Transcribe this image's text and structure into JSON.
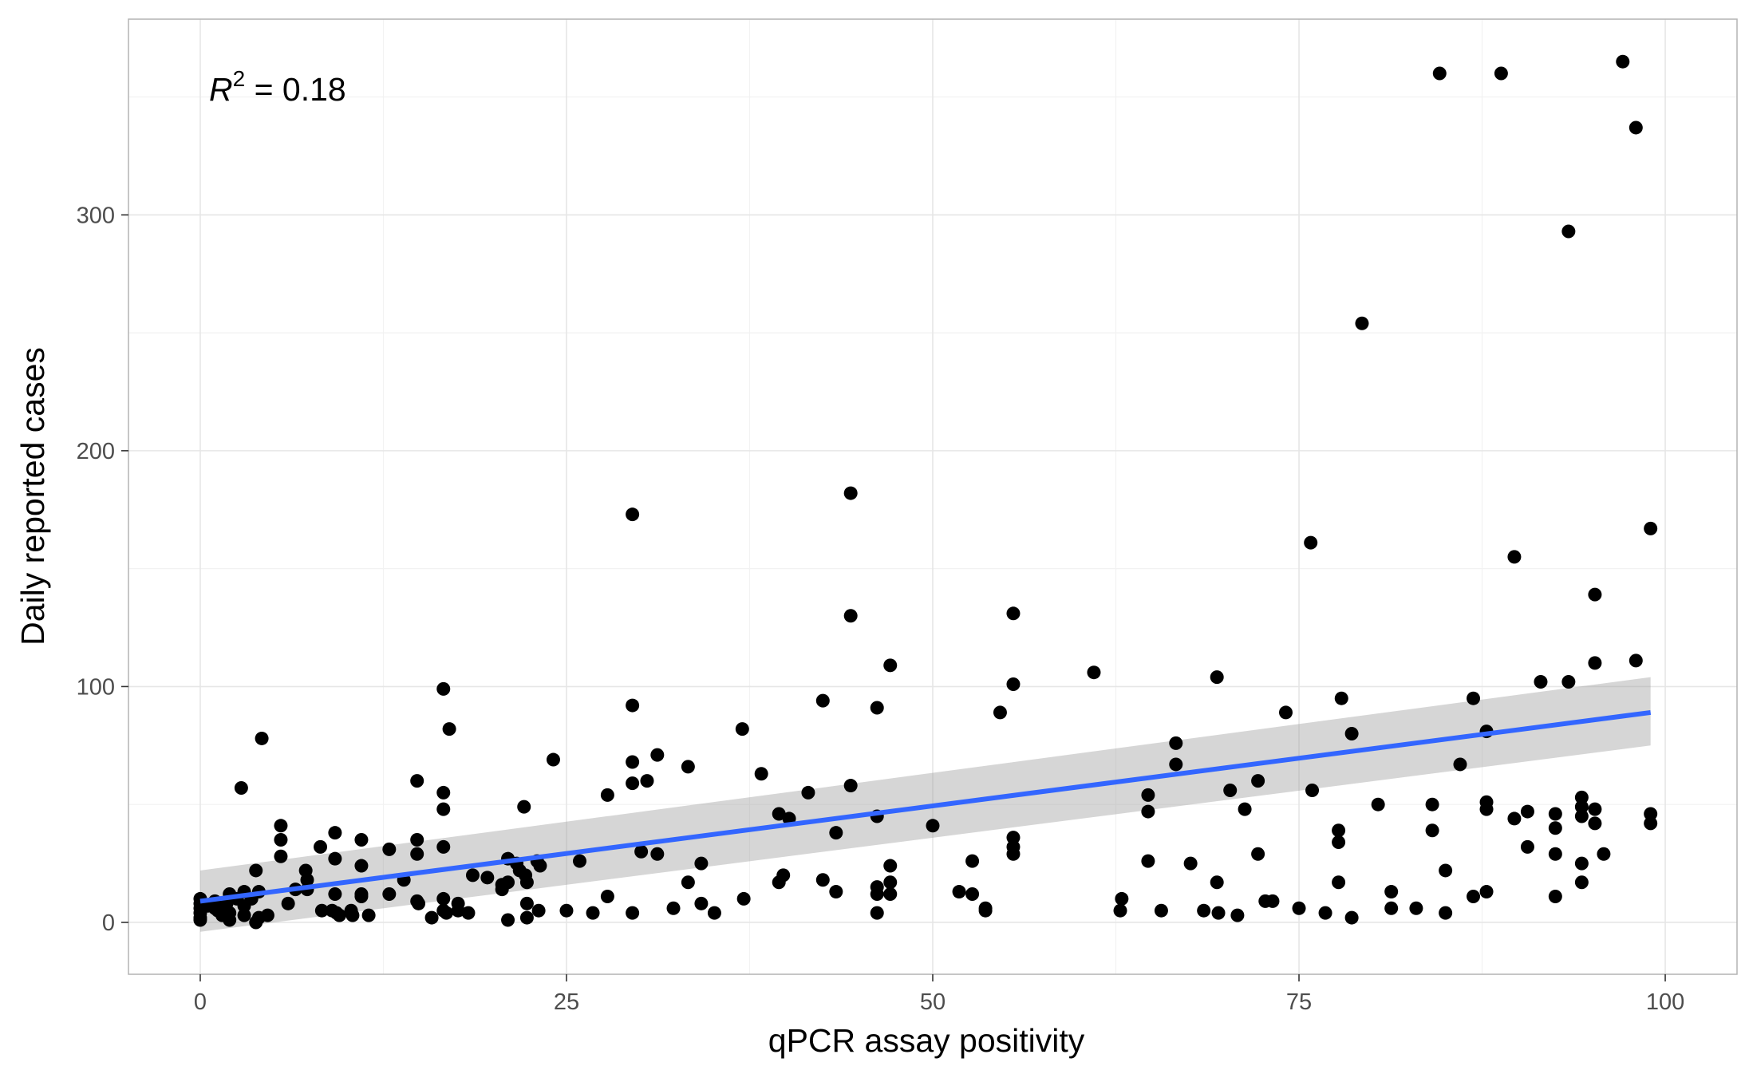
{
  "chart_data": {
    "type": "scatter",
    "xlabel": "qPCR assay positivity",
    "ylabel": "Daily reported cases",
    "xlim": [
      -4.9,
      104.9
    ],
    "ylim": [
      -22,
      383
    ],
    "x_ticks": [
      0,
      25,
      50,
      75,
      100
    ],
    "x_tick_labels": [
      "0",
      "25",
      "50",
      "75",
      "100"
    ],
    "y_ticks": [
      0,
      100,
      200,
      300
    ],
    "y_tick_labels": [
      "0",
      "100",
      "200",
      "300"
    ],
    "grid": true,
    "annotation": {
      "base": "R",
      "sup": "2",
      "rest": " = 0.18"
    },
    "colors": {
      "points": "#000000",
      "fit_line": "#3366FF",
      "confidence_band": "#d3d3d3",
      "grid": "#ebebeb",
      "panel_border": "#b3b3b3"
    },
    "fit": {
      "x": [
        0,
        99
      ],
      "y": [
        9,
        89
      ],
      "ci_lower": [
        -4,
        75
      ],
      "ci_upper": [
        22,
        104
      ]
    },
    "points": [
      [
        0,
        10
      ],
      [
        0,
        8
      ],
      [
        0,
        6
      ],
      [
        0,
        4
      ],
      [
        0,
        2
      ],
      [
        0,
        1
      ],
      [
        0.5,
        7
      ],
      [
        1,
        9
      ],
      [
        1,
        6
      ],
      [
        1.2,
        5
      ],
      [
        1.5,
        3
      ],
      [
        1.8,
        8
      ],
      [
        2,
        12
      ],
      [
        2,
        4
      ],
      [
        2,
        1
      ],
      [
        2.5,
        10
      ],
      [
        2.8,
        57
      ],
      [
        3,
        13
      ],
      [
        3,
        7
      ],
      [
        3,
        3
      ],
      [
        3.5,
        10
      ],
      [
        3.8,
        22
      ],
      [
        3.8,
        0
      ],
      [
        4,
        13
      ],
      [
        4,
        2
      ],
      [
        4.2,
        78
      ],
      [
        4.6,
        3
      ],
      [
        5.5,
        41
      ],
      [
        5.5,
        35
      ],
      [
        5.5,
        28
      ],
      [
        6,
        8
      ],
      [
        6.5,
        14
      ],
      [
        7.2,
        22
      ],
      [
        7.3,
        18
      ],
      [
        7.3,
        14
      ],
      [
        8.2,
        32
      ],
      [
        8.3,
        5
      ],
      [
        9,
        5
      ],
      [
        9.2,
        38
      ],
      [
        9.2,
        27
      ],
      [
        9.2,
        12
      ],
      [
        9.3,
        4
      ],
      [
        9.5,
        3
      ],
      [
        10.3,
        5
      ],
      [
        10.4,
        3
      ],
      [
        11,
        35
      ],
      [
        11,
        24
      ],
      [
        11,
        12
      ],
      [
        11,
        11
      ],
      [
        11.5,
        3
      ],
      [
        12.9,
        31
      ],
      [
        12.9,
        12
      ],
      [
        13.9,
        18
      ],
      [
        14.8,
        35
      ],
      [
        14.8,
        60
      ],
      [
        14.8,
        29
      ],
      [
        14.8,
        9
      ],
      [
        14.9,
        8
      ],
      [
        15.8,
        2
      ],
      [
        16.6,
        99
      ],
      [
        16.6,
        55
      ],
      [
        16.6,
        48
      ],
      [
        16.6,
        32
      ],
      [
        16.6,
        10
      ],
      [
        16.6,
        5
      ],
      [
        16.8,
        4
      ],
      [
        17,
        82
      ],
      [
        17.6,
        8
      ],
      [
        17.6,
        5
      ],
      [
        18.3,
        4
      ],
      [
        18.6,
        20
      ],
      [
        19.6,
        19
      ],
      [
        20.6,
        14
      ],
      [
        20.6,
        16
      ],
      [
        21,
        1
      ],
      [
        21,
        27
      ],
      [
        21,
        17
      ],
      [
        21.6,
        25
      ],
      [
        21.8,
        22
      ],
      [
        22.1,
        49
      ],
      [
        22.2,
        20
      ],
      [
        22.3,
        17
      ],
      [
        22.3,
        8
      ],
      [
        22.3,
        2
      ],
      [
        23,
        26
      ],
      [
        23.1,
        5
      ],
      [
        23.2,
        24
      ],
      [
        24.1,
        69
      ],
      [
        25,
        5
      ],
      [
        25.9,
        26
      ],
      [
        26.8,
        4
      ],
      [
        27.8,
        54
      ],
      [
        27.8,
        11
      ],
      [
        29.5,
        173
      ],
      [
        29.5,
        92
      ],
      [
        29.5,
        68
      ],
      [
        29.5,
        59
      ],
      [
        29.5,
        4
      ],
      [
        30.1,
        30
      ],
      [
        30.5,
        60
      ],
      [
        31.2,
        71
      ],
      [
        31.2,
        29
      ],
      [
        32.3,
        6
      ],
      [
        33.3,
        66
      ],
      [
        33.3,
        17
      ],
      [
        34.2,
        25
      ],
      [
        34.2,
        8
      ],
      [
        35.1,
        4
      ],
      [
        37,
        82
      ],
      [
        37.1,
        10
      ],
      [
        38.3,
        63
      ],
      [
        39.5,
        46
      ],
      [
        39.5,
        17
      ],
      [
        39.8,
        20
      ],
      [
        40.2,
        44
      ],
      [
        41.5,
        55
      ],
      [
        42.5,
        94
      ],
      [
        42.5,
        18
      ],
      [
        43.4,
        38
      ],
      [
        43.4,
        13
      ],
      [
        44.4,
        182
      ],
      [
        44.4,
        130
      ],
      [
        44.4,
        58
      ],
      [
        46.2,
        91
      ],
      [
        46.2,
        45
      ],
      [
        46.2,
        15
      ],
      [
        46.2,
        12
      ],
      [
        46.2,
        4
      ],
      [
        47.1,
        109
      ],
      [
        47.1,
        24
      ],
      [
        47.1,
        17
      ],
      [
        47.1,
        12
      ],
      [
        50,
        41
      ],
      [
        51.8,
        13
      ],
      [
        52.7,
        26
      ],
      [
        52.7,
        12
      ],
      [
        53.6,
        6
      ],
      [
        53.6,
        5
      ],
      [
        54.6,
        89
      ],
      [
        55.5,
        131
      ],
      [
        55.5,
        101
      ],
      [
        55.5,
        36
      ],
      [
        55.5,
        32
      ],
      [
        55.5,
        29
      ],
      [
        61,
        106
      ],
      [
        62.8,
        5
      ],
      [
        62.9,
        10
      ],
      [
        64.7,
        54
      ],
      [
        64.7,
        47
      ],
      [
        64.7,
        26
      ],
      [
        65.6,
        5
      ],
      [
        66.6,
        76
      ],
      [
        66.6,
        67
      ],
      [
        67.6,
        25
      ],
      [
        68.5,
        5
      ],
      [
        69.4,
        104
      ],
      [
        69.4,
        17
      ],
      [
        69.5,
        4
      ],
      [
        70.3,
        56
      ],
      [
        70.8,
        3
      ],
      [
        71.3,
        48
      ],
      [
        72.2,
        60
      ],
      [
        72.2,
        29
      ],
      [
        72.7,
        9
      ],
      [
        73.2,
        9
      ],
      [
        74.1,
        89
      ],
      [
        75,
        6
      ],
      [
        75.8,
        161
      ],
      [
        75.9,
        56
      ],
      [
        76.8,
        4
      ],
      [
        77.7,
        39
      ],
      [
        77.7,
        34
      ],
      [
        77.7,
        17
      ],
      [
        77.9,
        95
      ],
      [
        78.6,
        2
      ],
      [
        78.6,
        80
      ],
      [
        79.3,
        254
      ],
      [
        80.4,
        50
      ],
      [
        81.3,
        6
      ],
      [
        81.3,
        13
      ],
      [
        83,
        6
      ],
      [
        84.1,
        50
      ],
      [
        84.1,
        39
      ],
      [
        84.6,
        360
      ],
      [
        85,
        22
      ],
      [
        85,
        4
      ],
      [
        86,
        67
      ],
      [
        86.9,
        95
      ],
      [
        86.9,
        11
      ],
      [
        87.8,
        81
      ],
      [
        87.8,
        51
      ],
      [
        87.8,
        48
      ],
      [
        87.8,
        13
      ],
      [
        88.8,
        360
      ],
      [
        89.7,
        155
      ],
      [
        89.7,
        44
      ],
      [
        90.6,
        47
      ],
      [
        90.6,
        32
      ],
      [
        91.5,
        102
      ],
      [
        92.5,
        46
      ],
      [
        92.5,
        40
      ],
      [
        92.5,
        29
      ],
      [
        92.5,
        11
      ],
      [
        93.4,
        102
      ],
      [
        93.4,
        293
      ],
      [
        94.3,
        53
      ],
      [
        94.3,
        49
      ],
      [
        94.3,
        45
      ],
      [
        94.3,
        25
      ],
      [
        94.3,
        17
      ],
      [
        95.2,
        139
      ],
      [
        95.2,
        110
      ],
      [
        95.2,
        48
      ],
      [
        95.2,
        42
      ],
      [
        95.8,
        29
      ],
      [
        97.1,
        365
      ],
      [
        98,
        337
      ],
      [
        98,
        111
      ],
      [
        99,
        167
      ],
      [
        99,
        46
      ],
      [
        99,
        42
      ]
    ]
  }
}
